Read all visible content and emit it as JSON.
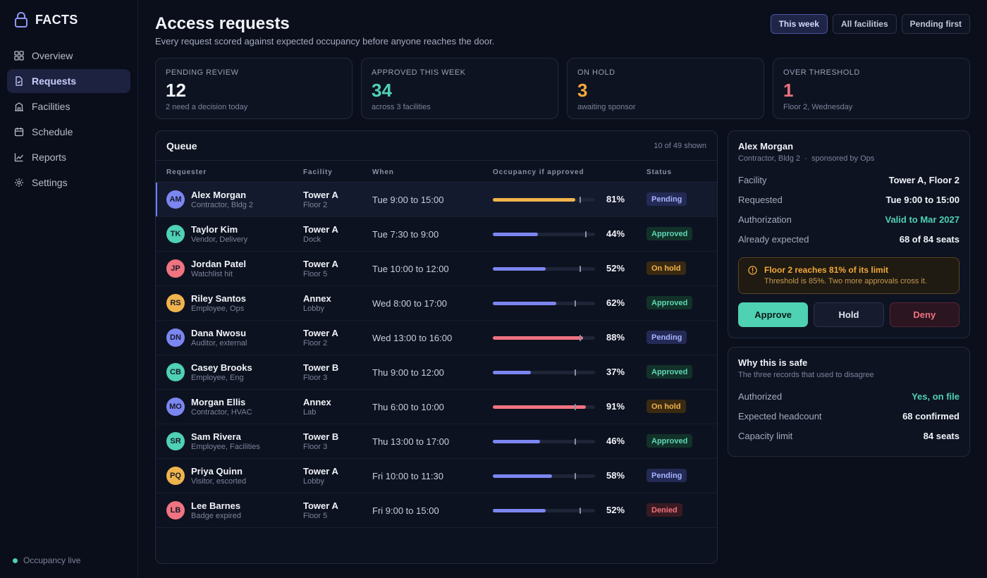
{
  "brand": {
    "name": "FACTS"
  },
  "sidebar": {
    "items": [
      {
        "label": "Overview",
        "icon": "grid-icon"
      },
      {
        "label": "Requests",
        "icon": "document-icon",
        "active": true
      },
      {
        "label": "Facilities",
        "icon": "building-icon"
      },
      {
        "label": "Schedule",
        "icon": "calendar-icon"
      },
      {
        "label": "Reports",
        "icon": "chart-icon"
      },
      {
        "label": "Settings",
        "icon": "gear-icon"
      }
    ],
    "status": "Occupancy live"
  },
  "header": {
    "title": "Access requests",
    "subtitle": "Every request scored against expected occupancy before anyone reaches the door.",
    "filters": [
      "This week",
      "All facilities",
      "Pending first"
    ]
  },
  "stats": [
    {
      "label": "Pending review",
      "value": "12",
      "note": "2 need a decision today",
      "color": "#f1f3f9"
    },
    {
      "label": "Approved this week",
      "value": "34",
      "note": "across 3 facilities",
      "color": "#4fd1b3"
    },
    {
      "label": "On hold",
      "value": "3",
      "note": "awaiting sponsor",
      "color": "#f2a93b"
    },
    {
      "label": "Over threshold",
      "value": "1",
      "note": "Floor 2, Wednesday",
      "color": "#f07380"
    }
  ],
  "queue": {
    "title": "Queue",
    "count": "10 of 49 shown",
    "columns": [
      "Requester",
      "Facility",
      "When",
      "Occupancy if approved",
      "Status"
    ],
    "rows": [
      {
        "initials": "AM",
        "avatar_color": "#7c86f0",
        "name": "Alex Morgan",
        "role": "Contractor, Bldg 2",
        "facility": "Tower A",
        "area": "Floor 2",
        "when": "Tue 9:00 to 15:00",
        "occupancy": 81,
        "pct": "81%",
        "threshold": 85,
        "bar_color": "#f0b44c",
        "status": "Pending",
        "status_kind": "pending",
        "selected": true
      },
      {
        "initials": "TK",
        "avatar_color": "#4fd1b3",
        "name": "Taylor Kim",
        "role": "Vendor, Delivery",
        "facility": "Tower A",
        "area": "Dock",
        "when": "Tue 7:30 to 9:00",
        "occupancy": 44,
        "pct": "44%",
        "threshold": 90,
        "bar_color": "#7c86f0",
        "status": "Approved",
        "status_kind": "approved"
      },
      {
        "initials": "JP",
        "avatar_color": "#f07380",
        "name": "Jordan Patel",
        "role": "Watchlist hit",
        "facility": "Tower A",
        "area": "Floor 5",
        "when": "Tue 10:00 to 12:00",
        "occupancy": 52,
        "pct": "52%",
        "threshold": 85,
        "bar_color": "#7c86f0",
        "status": "On hold",
        "status_kind": "hold"
      },
      {
        "initials": "RS",
        "avatar_color": "#f0b44c",
        "name": "Riley Santos",
        "role": "Employee, Ops",
        "facility": "Annex",
        "area": "Lobby",
        "when": "Wed 8:00 to 17:00",
        "occupancy": 62,
        "pct": "62%",
        "threshold": 80,
        "bar_color": "#7c86f0",
        "status": "Approved",
        "status_kind": "approved"
      },
      {
        "initials": "DN",
        "avatar_color": "#7c86f0",
        "name": "Dana Nwosu",
        "role": "Auditor, external",
        "facility": "Tower A",
        "area": "Floor 2",
        "when": "Wed 13:00 to 16:00",
        "occupancy": 88,
        "pct": "88%",
        "threshold": 85,
        "bar_color": "#f07380",
        "status": "Pending",
        "status_kind": "pending"
      },
      {
        "initials": "CB",
        "avatar_color": "#4fd1b3",
        "name": "Casey Brooks",
        "role": "Employee, Eng",
        "facility": "Tower B",
        "area": "Floor 3",
        "when": "Thu 9:00 to 12:00",
        "occupancy": 37,
        "pct": "37%",
        "threshold": 80,
        "bar_color": "#7c86f0",
        "status": "Approved",
        "status_kind": "approved"
      },
      {
        "initials": "MO",
        "avatar_color": "#7c86f0",
        "name": "Morgan Ellis",
        "role": "Contractor, HVAC",
        "facility": "Annex",
        "area": "Lab",
        "when": "Thu 6:00 to 10:00",
        "occupancy": 91,
        "pct": "91%",
        "threshold": 80,
        "bar_color": "#f07380",
        "status": "On hold",
        "status_kind": "hold"
      },
      {
        "initials": "SR",
        "avatar_color": "#4fd1b3",
        "name": "Sam Rivera",
        "role": "Employee, Facilities",
        "facility": "Tower B",
        "area": "Floor 3",
        "when": "Thu 13:00 to 17:00",
        "occupancy": 46,
        "pct": "46%",
        "threshold": 80,
        "bar_color": "#7c86f0",
        "status": "Approved",
        "status_kind": "approved"
      },
      {
        "initials": "PQ",
        "avatar_color": "#f0b44c",
        "name": "Priya Quinn",
        "role": "Visitor, escorted",
        "facility": "Tower A",
        "area": "Lobby",
        "when": "Fri 10:00 to 11:30",
        "occupancy": 58,
        "pct": "58%",
        "threshold": 80,
        "bar_color": "#7c86f0",
        "status": "Pending",
        "status_kind": "pending"
      },
      {
        "initials": "LB",
        "avatar_color": "#f07380",
        "name": "Lee Barnes",
        "role": "Badge expired",
        "facility": "Tower A",
        "area": "Floor 5",
        "when": "Fri 9:00 to 15:00",
        "occupancy": 52,
        "pct": "52%",
        "threshold": 85,
        "bar_color": "#7c86f0",
        "status": "Denied",
        "status_kind": "denied"
      }
    ]
  },
  "detail": {
    "name": "Alex Morgan",
    "role": "Contractor, Bldg 2",
    "sponsor": "sponsored by Ops",
    "fields": [
      {
        "label": "Facility",
        "value": "Tower A, Floor 2"
      },
      {
        "label": "Requested",
        "value": "Tue 9:00 to 15:00"
      },
      {
        "label": "Authorization",
        "value": "Valid to Mar 2027",
        "good": true
      },
      {
        "label": "Already expected",
        "value": "68 of 84 seats"
      }
    ],
    "alert": {
      "title": "Floor 2 reaches 81% of its limit",
      "body": "Threshold is 85%. Two more approvals cross it."
    },
    "actions": {
      "approve": "Approve",
      "hold": "Hold",
      "deny": "Deny"
    }
  },
  "safe": {
    "title": "Why this is safe",
    "subtitle": "The three records that used to disagree",
    "fields": [
      {
        "label": "Authorized",
        "value": "Yes, on file",
        "good": true
      },
      {
        "label": "Expected headcount",
        "value": "68 confirmed"
      },
      {
        "label": "Capacity limit",
        "value": "84 seats"
      }
    ]
  }
}
